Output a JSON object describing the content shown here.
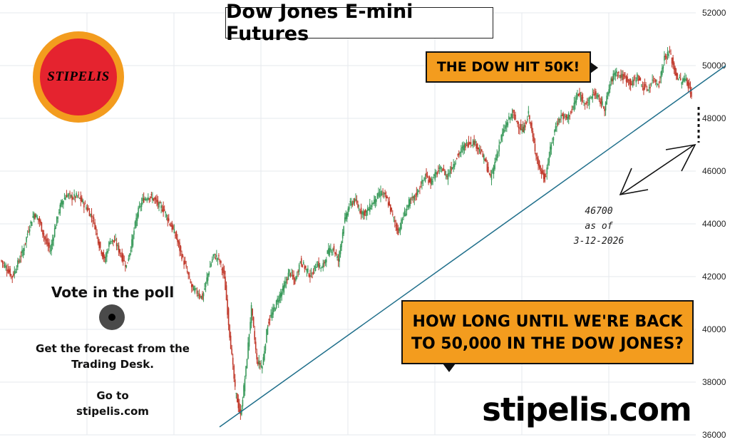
{
  "chart_data": {
    "type": "candlestick",
    "title": "Dow Jones E-mini Futures",
    "ylim": [
      36000,
      52000
    ],
    "y_ticks": [
      "36000",
      "38000",
      "40000",
      "42000",
      "44000",
      "46000",
      "48000",
      "50000",
      "52000"
    ],
    "y_axis_position": "right",
    "grid": true,
    "candle_colors": {
      "up": "#3a9a5b",
      "down": "#c0392b"
    },
    "trendline_color": "#1f6f8b",
    "series": [
      {
        "name": "",
        "values": [
          42600,
          42300,
          42000,
          42500,
          43000,
          43800,
          44400,
          44100,
          43400,
          43000,
          44000,
          44800,
          45100,
          45000,
          45050,
          44800,
          44500,
          44100,
          43200,
          42600,
          43400,
          43300,
          42800,
          42400,
          43300,
          44400,
          44900,
          45050,
          44950,
          44700,
          44500,
          44000,
          43600,
          42900,
          42300,
          41600,
          41400,
          41200,
          42100,
          42800,
          42700,
          42000,
          39800,
          37700,
          36700,
          38500,
          40800,
          38800,
          38600,
          40200,
          40700,
          41200,
          41600,
          42200,
          41800,
          42600,
          42300,
          42000,
          42500,
          42300,
          42900,
          43100,
          42600,
          44000,
          44700,
          44900,
          44500,
          44400,
          44700,
          45000,
          45200,
          44900,
          44300,
          43700,
          44300,
          44800,
          45000,
          45400,
          45800,
          45600,
          45900,
          46100,
          45800,
          46200,
          46600,
          46900,
          47100,
          47100,
          46800,
          46400,
          45700,
          46500,
          47300,
          47800,
          48200,
          47800,
          47500,
          48200,
          47000,
          46100,
          45700,
          46800,
          47700,
          48100,
          48000,
          48300,
          48900,
          48700,
          48600,
          49000,
          48700,
          48400,
          49300,
          49800,
          49600,
          49500,
          49300,
          49600,
          49200,
          49100,
          49500,
          49300,
          50300,
          50500,
          49700,
          49400,
          49500,
          48900
        ]
      }
    ],
    "trendline": {
      "from": 36300,
      "to": 50000
    }
  },
  "header": {
    "title": "Dow Jones E-mini Futures",
    "logo_text": "STIPELIS"
  },
  "callouts": {
    "dow_hit": "THE DOW HIT 50K!",
    "question_line1": "HOW LONG UNTIL WE'RE BACK",
    "question_line2": "TO 50,000 IN THE DOW JONES?"
  },
  "poll": {
    "title": "Vote in the poll",
    "forecast_line1": "Get the forecast from the",
    "forecast_line2": "Trading Desk.",
    "goto_line1": "Go to",
    "goto_line2": "stipelis.com"
  },
  "note": {
    "line1": "46700",
    "line2": "as of",
    "line3": "3-12-2026"
  },
  "brand": "stipelis.com"
}
